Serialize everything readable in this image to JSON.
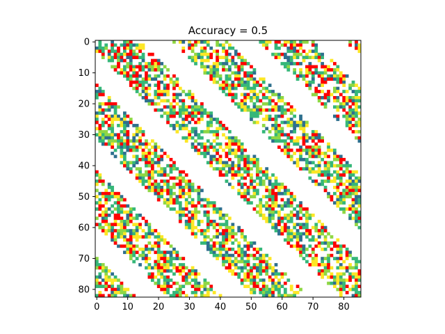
{
  "chart_data": {
    "type": "heatmap",
    "title": "Accuracy = 0.5",
    "xlabel": "",
    "ylabel": "",
    "x_range": [
      0,
      85
    ],
    "y_range": [
      0,
      82
    ],
    "y_inverted": true,
    "grid": false,
    "legend": "none",
    "x_ticks": [
      0,
      10,
      20,
      30,
      40,
      50,
      60,
      70,
      80
    ],
    "y_ticks": [
      0,
      10,
      20,
      30,
      40,
      50,
      60,
      70,
      80
    ],
    "cell_colors": [
      "#ffffff",
      "#2e6f8e",
      "#35b779",
      "#8fd744",
      "#fde725",
      "#ff0000"
    ],
    "band_period": 28,
    "band_width": 18,
    "band_phase": 3,
    "band_fill_density": 0.62
  }
}
